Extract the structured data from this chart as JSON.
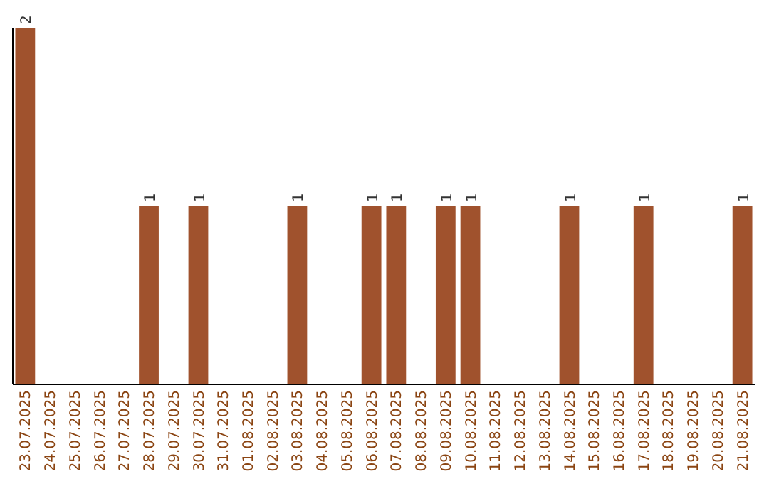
{
  "chart_data": {
    "type": "bar",
    "categories": [
      "23.07.2025",
      "24.07.2025",
      "25.07.2025",
      "26.07.2025",
      "27.07.2025",
      "28.07.2025",
      "29.07.2025",
      "30.07.2025",
      "31.07.2025",
      "01.08.2025",
      "02.08.2025",
      "03.08.2025",
      "04.08.2025",
      "05.08.2025",
      "06.08.2025",
      "07.08.2025",
      "08.08.2025",
      "09.08.2025",
      "10.08.2025",
      "11.08.2025",
      "12.08.2025",
      "13.08.2025",
      "14.08.2025",
      "15.08.2025",
      "16.08.2025",
      "17.08.2025",
      "18.08.2025",
      "19.08.2025",
      "20.08.2025",
      "21.08.2025"
    ],
    "values": [
      2,
      0,
      0,
      0,
      0,
      1,
      0,
      1,
      0,
      0,
      0,
      1,
      0,
      0,
      1,
      1,
      0,
      1,
      1,
      0,
      0,
      0,
      1,
      0,
      0,
      1,
      0,
      0,
      0,
      1
    ],
    "value_labels": [
      "2",
      null,
      null,
      null,
      null,
      "1",
      null,
      "1",
      null,
      null,
      null,
      "1",
      null,
      null,
      "1",
      "1",
      null,
      "1",
      "1",
      null,
      null,
      null,
      "1",
      null,
      null,
      "1",
      null,
      null,
      null,
      "1"
    ],
    "color": "#a0522d",
    "ylim": [
      0,
      2
    ],
    "tick_labels": "x"
  }
}
